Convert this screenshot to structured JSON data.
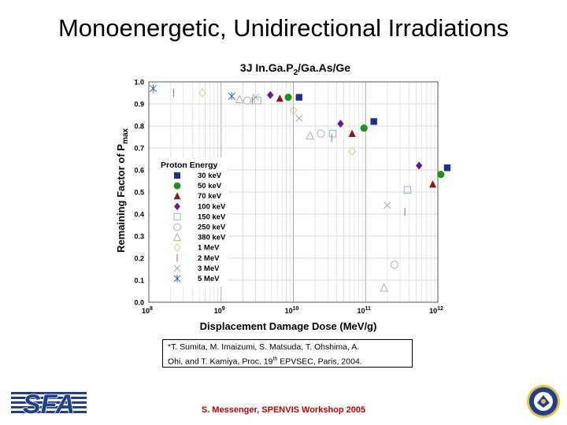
{
  "slide": {
    "title": "Monoenergetic, Unidirectional Irradiations",
    "footer": "S. Messenger, SPENVIS Workshop 2005",
    "citation_line1": "*T. Sumita, M. Imaizumi, S. Matsuda, T. Ohshima, A.",
    "citation_line2_pre": "Ohi, and T. Kamiya, Proc. 19",
    "citation_sup": "th",
    "citation_line2_post": " EPVSEC, Paris, 2004.",
    "logo_text": "SFA",
    "seal": "navy-seal-icon"
  },
  "chart_data": {
    "type": "scatter",
    "title_parts": {
      "a": "3J In.Ga.P",
      "b": "2",
      "c": "/Ga.As/Ge"
    },
    "xlabel": "Displacement Damage Dose (MeV/g)",
    "ylabel_main": "Remaining Factor of P",
    "ylabel_sub": "max",
    "x_scale": "log",
    "xlim": [
      100000000.0,
      1000000000000.0
    ],
    "ylim": [
      0,
      1.0
    ],
    "x_ticks": [
      {
        "value": 100000000.0,
        "base": "10",
        "exp": "8"
      },
      {
        "value": 1000000000.0,
        "base": "10",
        "exp": "9"
      },
      {
        "value": 10000000000.0,
        "base": "10",
        "exp": "10"
      },
      {
        "value": 100000000000.0,
        "base": "10",
        "exp": "11"
      },
      {
        "value": 1000000000000.0,
        "base": "10",
        "exp": "12"
      }
    ],
    "y_ticks": [
      "0.0",
      "0.1",
      "0.2",
      "0.3",
      "0.4",
      "0.5",
      "0.6",
      "0.7",
      "0.8",
      "0.9",
      "1.0"
    ],
    "grid": true,
    "legend_title": "Proton Energy",
    "legend_position": "left-center",
    "series": [
      {
        "name": "30 keV",
        "marker": "square-filled",
        "color": "#1f2f8f",
        "points": [
          [
            12000000000.0,
            0.93
          ],
          [
            130000000000.0,
            0.82
          ],
          [
            1350000000000.0,
            0.61
          ]
        ]
      },
      {
        "name": "50 keV",
        "marker": "circle-filled",
        "color": "#1f8f1f",
        "points": [
          [
            8500000000.0,
            0.93
          ],
          [
            95000000000.0,
            0.79
          ],
          [
            1100000000000.0,
            0.58
          ]
        ]
      },
      {
        "name": "70 keV",
        "marker": "triangle-filled",
        "color": "#8b1a1a",
        "points": [
          [
            6500000000.0,
            0.925
          ],
          [
            65000000000.0,
            0.765
          ],
          [
            850000000000.0,
            0.535
          ]
        ]
      },
      {
        "name": "100 keV",
        "marker": "diamond-filled",
        "color": "#6a1a8a",
        "points": [
          [
            4800000000.0,
            0.94
          ],
          [
            45000000000.0,
            0.81
          ],
          [
            550000000000.0,
            0.62
          ]
        ]
      },
      {
        "name": "150 keV",
        "marker": "square-open",
        "color": "#8ab4e0",
        "points": [
          [
            3200000000.0,
            0.915
          ],
          [
            35000000000.0,
            0.765
          ],
          [
            380000000000.0,
            0.51
          ]
        ]
      },
      {
        "name": "250 keV",
        "marker": "circle-open",
        "color": "#b0b0b0",
        "points": [
          [
            2300000000.0,
            0.915
          ],
          [
            24000000000.0,
            0.765
          ],
          [
            250000000000.0,
            0.17
          ]
        ]
      },
      {
        "name": "380 keV",
        "marker": "triangle-open",
        "color": "#b0b0b0",
        "points": [
          [
            1800000000.0,
            0.92
          ],
          [
            17000000000.0,
            0.755
          ],
          [
            180000000000.0,
            0.065
          ]
        ]
      },
      {
        "name": "1 MeV",
        "marker": "diamond-open",
        "color": "#e8c48a",
        "points": [
          [
            550000000.0,
            0.95
          ],
          [
            10000000000.0,
            0.87
          ],
          [
            65000000000.0,
            0.685
          ]
        ]
      },
      {
        "name": "2 MeV",
        "marker": "vbar",
        "color": "#c07080",
        "points": [
          [
            220000000.0,
            0.95
          ],
          [
            2700000000.0,
            0.915
          ],
          [
            34000000000.0,
            0.745
          ],
          [
            350000000000.0,
            0.41
          ]
        ]
      },
      {
        "name": "3 MeV",
        "marker": "x",
        "color": "#90b0b0",
        "points": [
          [
            3000000000.0,
            0.93
          ],
          [
            12000000000.0,
            0.835
          ],
          [
            200000000000.0,
            0.44
          ]
        ]
      },
      {
        "name": "5 MeV",
        "marker": "asterisk",
        "color": "#3a6aa0",
        "points": [
          [
            115000000.0,
            0.97
          ],
          [
            1400000000.0,
            0.935
          ]
        ]
      }
    ]
  }
}
